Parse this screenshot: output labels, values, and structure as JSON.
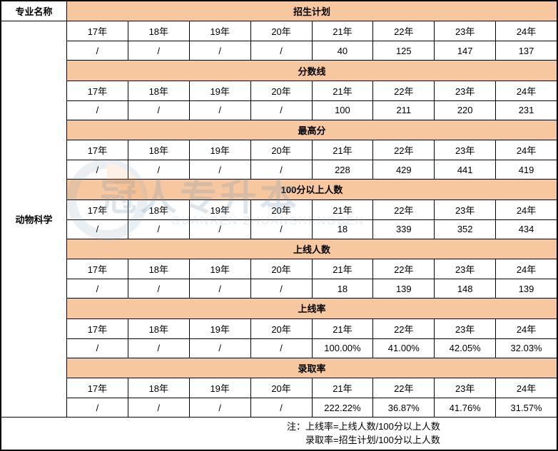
{
  "table": {
    "header_major": "专业名称",
    "major_name": "动物科学",
    "years": [
      "17年",
      "18年",
      "19年",
      "20年",
      "21年",
      "22年",
      "23年",
      "24年"
    ],
    "sections": [
      {
        "title": "招生计划",
        "values": [
          "/",
          "/",
          "/",
          "/",
          "40",
          "125",
          "147",
          "137"
        ]
      },
      {
        "title": "分数线",
        "values": [
          "/",
          "/",
          "/",
          "/",
          "100",
          "211",
          "220",
          "231"
        ]
      },
      {
        "title": "最高分",
        "values": [
          "/",
          "/",
          "/",
          "/",
          "228",
          "429",
          "441",
          "419"
        ]
      },
      {
        "title": "100分以上人数",
        "values": [
          "/",
          "/",
          "/",
          "/",
          "18",
          "339",
          "352",
          "434"
        ]
      },
      {
        "title": "上线人数",
        "values": [
          "/",
          "/",
          "/",
          "/",
          "18",
          "139",
          "148",
          "139"
        ]
      },
      {
        "title": "上线率",
        "values": [
          "/",
          "/",
          "/",
          "/",
          "100.00%",
          "41.00%",
          "42.05%",
          "32.03%"
        ]
      },
      {
        "title": "录取率",
        "values": [
          "/",
          "/",
          "/",
          "/",
          "222.22%",
          "36.87%",
          "41.76%",
          "31.57%"
        ]
      }
    ],
    "note_line1": "注：上线率=上线人数/100分以上人数",
    "note_line2": "录取率=招生计划/100分以上人数"
  },
  "colors": {
    "header_bg": "#f7c8a0",
    "border": "#000000",
    "bg": "#ffffff",
    "watermark_text": "#7a9bb5"
  },
  "watermark": {
    "cn": "冠人专升本",
    "en": "GUANREN ZHUANSHENGBEN"
  }
}
